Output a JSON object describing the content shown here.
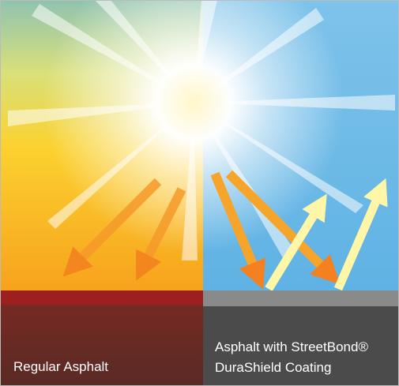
{
  "left_panel": {
    "label": "Regular Asphalt"
  },
  "right_panel": {
    "label_lines": [
      "Asphalt with StreetBond®",
      "DuraShield Coating"
    ]
  }
}
